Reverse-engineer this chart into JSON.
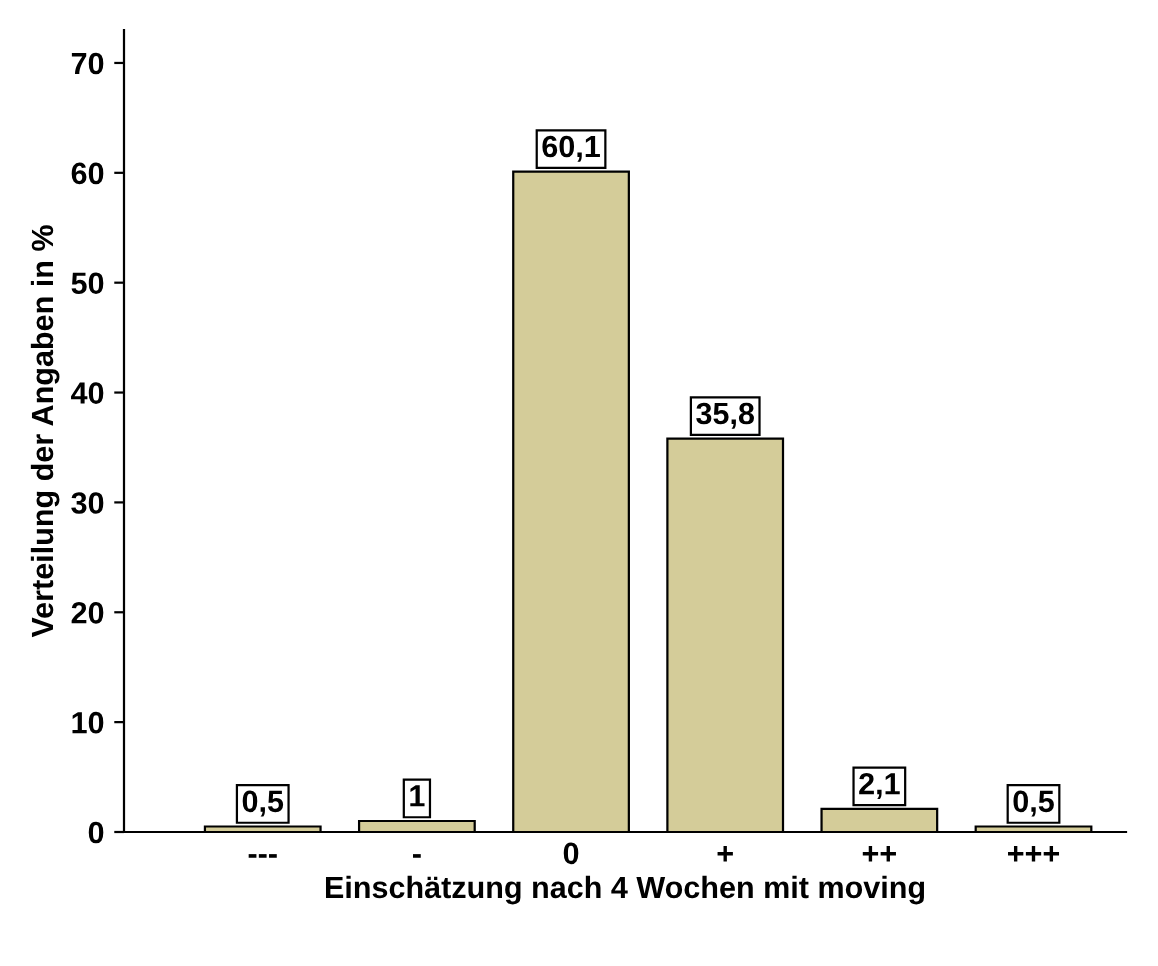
{
  "chart_data": {
    "type": "bar",
    "xlabel": "Einschätzung nach 4 Wochen mit moving",
    "ylabel": "Verteilung der Angaben in %",
    "categories": [
      "---",
      "-",
      "0",
      "+",
      "++",
      "+++"
    ],
    "values": [
      0.5,
      1,
      60.1,
      35.8,
      2.1,
      0.5
    ],
    "value_labels": [
      "0,5",
      "1",
      "60,1",
      "35,8",
      "2,1",
      "0,5"
    ],
    "color": "#d4cc99",
    "ylim": [
      0,
      73
    ],
    "yticks": [
      0,
      10,
      20,
      30,
      40,
      50,
      60,
      70
    ],
    "grid": false
  }
}
